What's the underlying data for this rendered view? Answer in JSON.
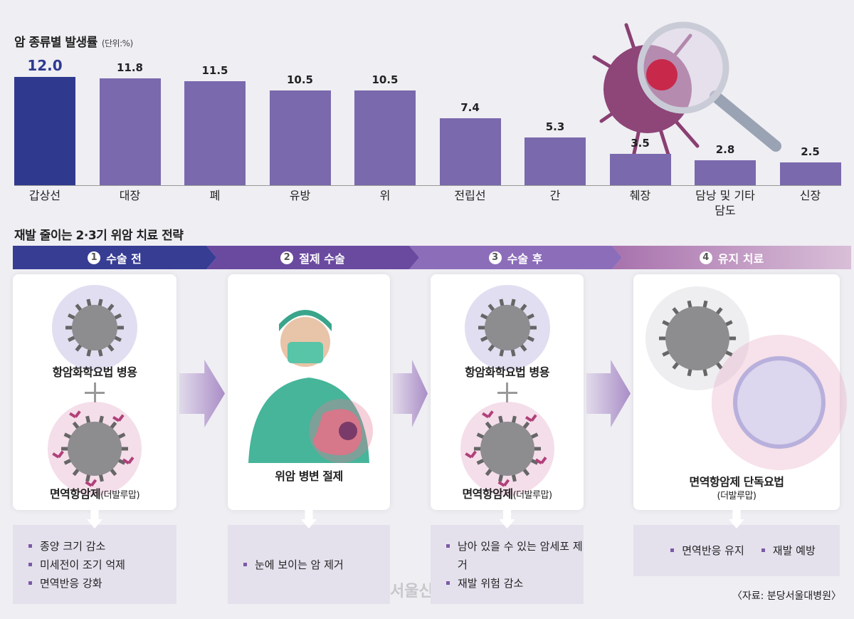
{
  "chart_data": {
    "type": "bar",
    "title": "암 종류별 발생률",
    "unit": "(단위:%)",
    "categories": [
      "갑상선",
      "대장",
      "폐",
      "유방",
      "위",
      "전립선",
      "간",
      "췌장",
      "담낭 및 기타담도",
      "신장"
    ],
    "values": [
      12.0,
      11.8,
      11.5,
      10.5,
      10.5,
      7.4,
      5.3,
      3.5,
      2.8,
      2.5
    ],
    "value_labels": [
      "12.0",
      "11.8",
      "11.5",
      "10.5",
      "10.5",
      "7.4",
      "5.3",
      "3.5",
      "2.8",
      "2.5"
    ],
    "colors": [
      "#2f3a8f",
      "#7a69ad",
      "#7a69ad",
      "#7a69ad",
      "#7a69ad",
      "#7a69ad",
      "#7a69ad",
      "#7a69ad",
      "#7a69ad",
      "#7a69ad"
    ]
  },
  "strategy": {
    "title": "재발 줄이는 2·3기 위암 치료 전략",
    "steps": [
      {
        "number": "1",
        "label": "수술 전",
        "items": [
          "항암화학요법 병용",
          "면역항암제"
        ],
        "note": "(더발루맙)",
        "effects": [
          "종양 크기 감소",
          "미세전이 조기 억제",
          "면역반응 강화"
        ]
      },
      {
        "number": "2",
        "label": "절제 수술",
        "items": [
          "위암 병변 절제"
        ],
        "effects": [
          "눈에 보이는 암 제거"
        ]
      },
      {
        "number": "3",
        "label": "수술 후",
        "items": [
          "항암화학요법 병용",
          "면역항암제"
        ],
        "note": "(더발루맙)",
        "effects": [
          "남아 있을 수 있는 암세포 제거",
          "재발 위험 감소"
        ]
      },
      {
        "number": "4",
        "label": "유지 치료",
        "items": [
          "면역항암제 단독요법"
        ],
        "note": "(더발루맙)",
        "effects": [
          "면역반응 유지",
          "재발 예방"
        ]
      }
    ]
  },
  "watermark": "서울신문",
  "source": "〈자료: 분당서울대병원〉"
}
